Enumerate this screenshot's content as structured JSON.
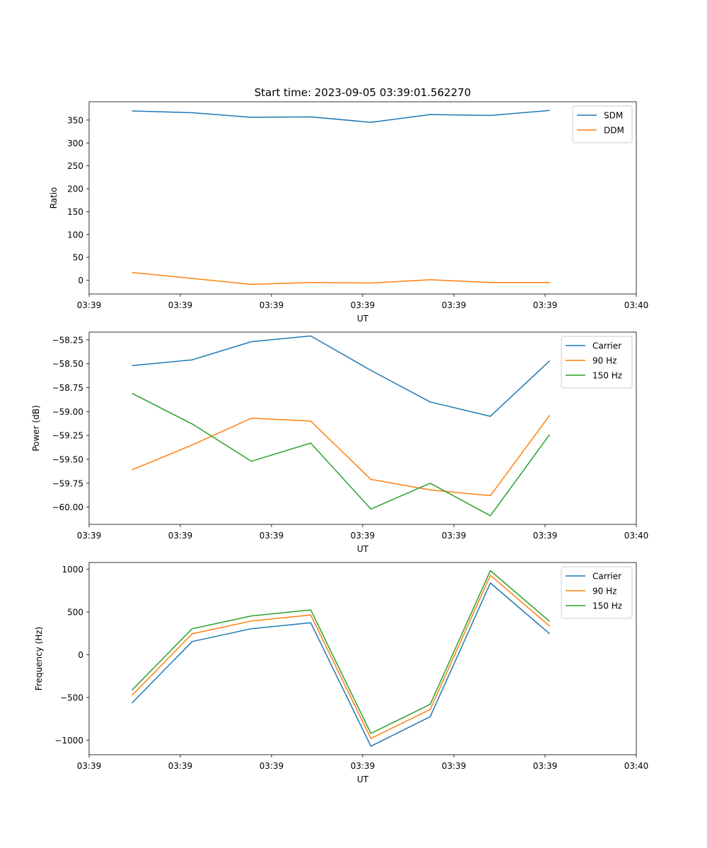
{
  "figure_title": "Start time: 2023-09-05 03:39:01.562270",
  "chart_data": [
    {
      "type": "line",
      "title": "Start time: 2023-09-05 03:39:01.562270",
      "xlabel": "UT",
      "ylabel": "Ratio",
      "xlim": [
        0,
        60
      ],
      "ylim": [
        -30,
        390
      ],
      "x_ticks": [
        {
          "value": 0,
          "label": "03:39"
        },
        {
          "value": 10,
          "label": "03:39"
        },
        {
          "value": 20,
          "label": "03:39"
        },
        {
          "value": 30,
          "label": "03:39"
        },
        {
          "value": 40,
          "label": "03:39"
        },
        {
          "value": 50,
          "label": "03:39"
        },
        {
          "value": 60,
          "label": "03:40"
        }
      ],
      "y_ticks": [
        {
          "value": 0,
          "label": "0"
        },
        {
          "value": 50,
          "label": "50"
        },
        {
          "value": 100,
          "label": "100"
        },
        {
          "value": 150,
          "label": "150"
        },
        {
          "value": 200,
          "label": "200"
        },
        {
          "value": 250,
          "label": "250"
        },
        {
          "value": 300,
          "label": "300"
        },
        {
          "value": 350,
          "label": "350"
        }
      ],
      "x": [
        4.7,
        11.3,
        17.8,
        24.3,
        30.9,
        37.4,
        44.0,
        50.5
      ],
      "legend": "upper-right",
      "series": [
        {
          "name": "SDM",
          "color": "#1f77b4",
          "values": [
            370,
            366,
            356,
            357,
            345,
            362,
            360,
            371
          ]
        },
        {
          "name": "DDM",
          "color": "#ff7f0e",
          "values": [
            17,
            4,
            -9,
            -5,
            -6,
            1,
            -5,
            -5
          ]
        }
      ]
    },
    {
      "type": "line",
      "title": "",
      "xlabel": "UT",
      "ylabel": "Power (dB)",
      "xlim": [
        0,
        60
      ],
      "ylim": [
        -60.18,
        -58.17
      ],
      "x_ticks": [
        {
          "value": 0,
          "label": "03:39"
        },
        {
          "value": 10,
          "label": "03:39"
        },
        {
          "value": 20,
          "label": "03:39"
        },
        {
          "value": 30,
          "label": "03:39"
        },
        {
          "value": 40,
          "label": "03:39"
        },
        {
          "value": 50,
          "label": "03:39"
        },
        {
          "value": 60,
          "label": "03:40"
        }
      ],
      "y_ticks": [
        {
          "value": -58.25,
          "label": "−58.25"
        },
        {
          "value": -58.5,
          "label": "−58.50"
        },
        {
          "value": -58.75,
          "label": "−58.75"
        },
        {
          "value": -59.0,
          "label": "−59.00"
        },
        {
          "value": -59.25,
          "label": "−59.25"
        },
        {
          "value": -59.5,
          "label": "−59.50"
        },
        {
          "value": -59.75,
          "label": "−59.75"
        },
        {
          "value": -60.0,
          "label": "−60.00"
        }
      ],
      "x": [
        4.7,
        11.3,
        17.8,
        24.3,
        30.9,
        37.4,
        44.0,
        50.5
      ],
      "legend": "upper-right",
      "series": [
        {
          "name": "Carrier",
          "color": "#1f77b4",
          "values": [
            -58.52,
            -58.46,
            -58.27,
            -58.21,
            -58.57,
            -58.9,
            -59.05,
            -58.47
          ]
        },
        {
          "name": "90 Hz",
          "color": "#ff7f0e",
          "values": [
            -59.61,
            -59.35,
            -59.07,
            -59.1,
            -59.71,
            -59.82,
            -59.88,
            -59.04
          ]
        },
        {
          "name": "150 Hz",
          "color": "#2ca02c",
          "values": [
            -58.81,
            -59.13,
            -59.52,
            -59.33,
            -60.02,
            -59.75,
            -60.09,
            -59.24
          ]
        }
      ]
    },
    {
      "type": "line",
      "title": "",
      "xlabel": "UT",
      "ylabel": "Frequency (Hz)",
      "xlim": [
        0,
        60
      ],
      "ylim": [
        -1170,
        1080
      ],
      "x_ticks": [
        {
          "value": 0,
          "label": "03:39"
        },
        {
          "value": 10,
          "label": "03:39"
        },
        {
          "value": 20,
          "label": "03:39"
        },
        {
          "value": 30,
          "label": "03:39"
        },
        {
          "value": 40,
          "label": "03:39"
        },
        {
          "value": 50,
          "label": "03:39"
        },
        {
          "value": 60,
          "label": "03:40"
        }
      ],
      "y_ticks": [
        {
          "value": 1000,
          "label": "1000"
        },
        {
          "value": 500,
          "label": "500"
        },
        {
          "value": 0,
          "label": "0"
        },
        {
          "value": -500,
          "label": "−500"
        },
        {
          "value": -1000,
          "label": "−1000"
        }
      ],
      "x": [
        4.7,
        11.3,
        17.8,
        24.3,
        30.9,
        37.4,
        44.0,
        50.5
      ],
      "legend": "upper-right",
      "series": [
        {
          "name": "Carrier",
          "color": "#1f77b4",
          "values": [
            -565,
            155,
            305,
            375,
            -1070,
            -725,
            840,
            245
          ]
        },
        {
          "name": "90 Hz",
          "color": "#ff7f0e",
          "values": [
            -475,
            245,
            395,
            465,
            -980,
            -640,
            930,
            335
          ]
        },
        {
          "name": "150 Hz",
          "color": "#2ca02c",
          "values": [
            -415,
            305,
            455,
            525,
            -920,
            -580,
            985,
            390
          ]
        }
      ]
    }
  ]
}
